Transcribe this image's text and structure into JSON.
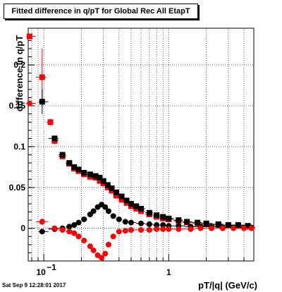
{
  "chart_data": {
    "type": "scatter",
    "title": "Fitted difference in q/pT for Global Rec All EtapT",
    "xlabel": "pT/|q| (GeV/c)",
    "ylabel": "difference in q/pT",
    "x_scale": "log",
    "xlim": [
      0.075,
      4.8
    ],
    "ylim": [
      -0.04,
      0.245
    ],
    "grid": true,
    "datestamp": "Sat Sep  9 12:28:01 2017",
    "y_tick_labels": [
      "0",
      "0.05",
      "0.1",
      "0.15",
      "0.2"
    ],
    "y_ticks": [
      0,
      0.05,
      0.1,
      0.15,
      0.2
    ],
    "x_tick_labels": [
      "10",
      "−1",
      "1"
    ],
    "x_ticks": [
      0.1,
      1
    ],
    "series": [
      {
        "color": "#ff0000",
        "marker": "square",
        "x": [
          0.077,
          0.097,
          0.113,
          0.122,
          0.141,
          0.16,
          0.175,
          0.19,
          0.21,
          0.235,
          0.26,
          0.28,
          0.3,
          0.325,
          0.35,
          0.38,
          0.42,
          0.46,
          0.5,
          0.55,
          0.6,
          0.7,
          0.8,
          0.9,
          1.0,
          1.2,
          1.4,
          1.7,
          2.0,
          2.5,
          3.0,
          3.6,
          4.3
        ],
        "y": [
          0.235,
          0.185,
          0.13,
          0.107,
          0.088,
          0.079,
          0.073,
          0.07,
          0.066,
          0.063,
          0.062,
          0.058,
          0.055,
          0.05,
          0.046,
          0.04,
          0.035,
          0.031,
          0.027,
          0.024,
          0.021,
          0.017,
          0.014,
          0.012,
          0.011,
          0.009,
          0.007,
          0.006,
          0.005,
          0.004,
          0.004,
          0.003,
          0.002
        ],
        "yerr": [
          0.002,
          0.035,
          0.004,
          0.004,
          0.003,
          0.002,
          0.002,
          0.002,
          0.001,
          0.001,
          0.001,
          0.001,
          0.001,
          0.001,
          0.001,
          0.001,
          0.001,
          0.001,
          0.001,
          0.001,
          0.001,
          0.001,
          0.001,
          0.001,
          0.001,
          0.001,
          0.001,
          0.001,
          0.001,
          0.001,
          0.001,
          0.001,
          0.001
        ]
      },
      {
        "color": "#000000",
        "marker": "square",
        "x": [
          0.097,
          0.122,
          0.141,
          0.16,
          0.175,
          0.19,
          0.21,
          0.235,
          0.26,
          0.28,
          0.3,
          0.325,
          0.35,
          0.38,
          0.42,
          0.46,
          0.5,
          0.55,
          0.6,
          0.7,
          0.8,
          0.9,
          1.0,
          1.2,
          1.4,
          1.7,
          2.0,
          2.5,
          3.0,
          3.6,
          4.3
        ],
        "y": [
          0.155,
          0.11,
          0.09,
          0.08,
          0.075,
          0.072,
          0.068,
          0.066,
          0.064,
          0.062,
          0.058,
          0.053,
          0.049,
          0.044,
          0.039,
          0.034,
          0.03,
          0.027,
          0.024,
          0.019,
          0.016,
          0.014,
          0.012,
          0.01,
          0.008,
          0.007,
          0.006,
          0.005,
          0.004,
          0.004,
          0.003
        ],
        "yerr": [
          0.015,
          0.003,
          0.002,
          0.002,
          0.002,
          0.001,
          0.001,
          0.001,
          0.001,
          0.001,
          0.001,
          0.001,
          0.001,
          0.001,
          0.001,
          0.001,
          0.001,
          0.001,
          0.001,
          0.001,
          0.001,
          0.001,
          0.001,
          0.001,
          0.001,
          0.001,
          0.001,
          0.001,
          0.001,
          0.001,
          0.001
        ]
      },
      {
        "color": "#000000",
        "marker": "circle",
        "x": [
          0.097,
          0.122,
          0.141,
          0.16,
          0.175,
          0.19,
          0.21,
          0.235,
          0.25,
          0.27,
          0.29,
          0.31,
          0.33,
          0.36,
          0.4,
          0.45,
          0.5,
          0.6,
          0.7,
          0.8,
          0.9,
          1.0,
          1.2,
          1.5,
          1.8,
          2.2,
          2.7,
          3.3,
          4.0,
          4.6
        ],
        "y": [
          -0.004,
          -0.001,
          0.0,
          0.002,
          0.004,
          0.007,
          0.011,
          0.017,
          0.021,
          0.026,
          0.029,
          0.026,
          0.021,
          0.015,
          0.011,
          0.008,
          0.007,
          0.006,
          0.005,
          0.004,
          0.004,
          0.003,
          0.003,
          0.002,
          0.002,
          0.002,
          0.001,
          0.001,
          0.001,
          0.001
        ],
        "yerr": [
          0.002,
          0.001,
          0.001,
          0.001,
          0.001,
          0.001,
          0.001,
          0.001,
          0.001,
          0.001,
          0.001,
          0.001,
          0.001,
          0.001,
          0.001,
          0.001,
          0.001,
          0.001,
          0.001,
          0.001,
          0.001,
          0.001,
          0.001,
          0.001,
          0.001,
          0.001,
          0.001,
          0.001,
          0.001,
          0.001
        ]
      },
      {
        "color": "#ff0000",
        "marker": "circle",
        "x": [
          0.077,
          0.097,
          0.122,
          0.141,
          0.16,
          0.175,
          0.19,
          0.21,
          0.235,
          0.25,
          0.27,
          0.29,
          0.31,
          0.33,
          0.36,
          0.4,
          0.45,
          0.5,
          0.6,
          0.7,
          0.8,
          0.9,
          1.0,
          1.2,
          1.5,
          1.8,
          2.2,
          2.7,
          3.3,
          4.0,
          4.6
        ],
        "y": [
          0.153,
          0.008,
          0.0,
          -0.002,
          -0.004,
          -0.006,
          -0.01,
          -0.015,
          -0.022,
          -0.027,
          -0.033,
          -0.036,
          -0.031,
          -0.02,
          -0.01,
          -0.004,
          -0.003,
          -0.002,
          -0.002,
          -0.002,
          -0.001,
          -0.001,
          -0.001,
          -0.001,
          -0.001,
          0.0,
          0.0,
          0.0,
          0.0,
          0.0,
          0.0
        ],
        "yerr": [
          0.002,
          0.004,
          0.001,
          0.001,
          0.001,
          0.001,
          0.001,
          0.001,
          0.001,
          0.001,
          0.001,
          0.001,
          0.001,
          0.001,
          0.001,
          0.001,
          0.001,
          0.001,
          0.001,
          0.001,
          0.001,
          0.001,
          0.001,
          0.001,
          0.001,
          0.001,
          0.001,
          0.001,
          0.001,
          0.001,
          0.001
        ]
      }
    ]
  }
}
